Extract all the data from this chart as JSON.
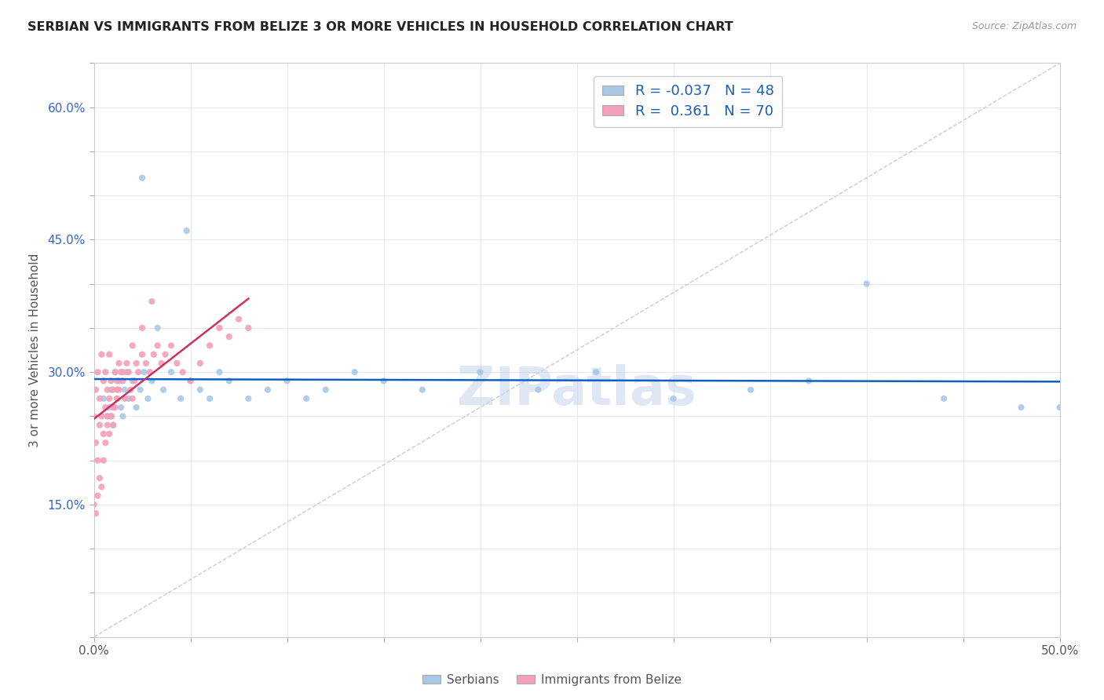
{
  "title": "SERBIAN VS IMMIGRANTS FROM BELIZE 3 OR MORE VEHICLES IN HOUSEHOLD CORRELATION CHART",
  "source": "Source: ZipAtlas.com",
  "ylabel": "3 or more Vehicles in Household",
  "xlim": [
    0.0,
    0.5
  ],
  "ylim": [
    0.0,
    0.65
  ],
  "xtick_pos": [
    0.0,
    0.05,
    0.1,
    0.15,
    0.2,
    0.25,
    0.3,
    0.35,
    0.4,
    0.45,
    0.5
  ],
  "xtick_labels": [
    "0.0%",
    "",
    "",
    "",
    "",
    "",
    "",
    "",
    "",
    "",
    "50.0%"
  ],
  "ytick_pos": [
    0.0,
    0.05,
    0.1,
    0.15,
    0.2,
    0.25,
    0.3,
    0.35,
    0.4,
    0.45,
    0.5,
    0.55,
    0.6,
    0.65
  ],
  "ytick_labels": [
    "",
    "",
    "",
    "15.0%",
    "",
    "",
    "30.0%",
    "",
    "",
    "45.0%",
    "",
    "",
    "60.0%",
    ""
  ],
  "serbian_R": -0.037,
  "serbian_N": 48,
  "belize_R": 0.361,
  "belize_N": 70,
  "serbian_color": "#a8c8e8",
  "belize_color": "#f4a0b8",
  "serbian_line_color": "#1060c0",
  "belize_line_color": "#d03060",
  "legend_serbian_label": "Serbians",
  "legend_belize_label": "Immigrants from Belize",
  "watermark": "ZIPatlas",
  "diag_line_color": "#cccccc",
  "serbian_x": [
    0.005,
    0.007,
    0.008,
    0.009,
    0.01,
    0.011,
    0.012,
    0.013,
    0.014,
    0.015,
    0.016,
    0.017,
    0.018,
    0.02,
    0.022,
    0.024,
    0.026,
    0.028,
    0.03,
    0.033,
    0.036,
    0.04,
    0.045,
    0.05,
    0.055,
    0.06,
    0.065,
    0.07,
    0.08,
    0.09,
    0.1,
    0.11,
    0.12,
    0.135,
    0.15,
    0.17,
    0.2,
    0.23,
    0.26,
    0.3,
    0.34,
    0.37,
    0.4,
    0.44,
    0.48,
    0.5,
    0.025,
    0.048
  ],
  "serbian_y": [
    0.27,
    0.25,
    0.26,
    0.28,
    0.24,
    0.3,
    0.27,
    0.29,
    0.26,
    0.25,
    0.28,
    0.3,
    0.27,
    0.29,
    0.26,
    0.28,
    0.3,
    0.27,
    0.29,
    0.35,
    0.28,
    0.3,
    0.27,
    0.29,
    0.28,
    0.27,
    0.3,
    0.29,
    0.27,
    0.28,
    0.29,
    0.27,
    0.28,
    0.3,
    0.29,
    0.28,
    0.3,
    0.28,
    0.3,
    0.27,
    0.28,
    0.29,
    0.4,
    0.27,
    0.26,
    0.26,
    0.52,
    0.46
  ],
  "belize_x": [
    0.0,
    0.001,
    0.001,
    0.002,
    0.002,
    0.003,
    0.003,
    0.004,
    0.004,
    0.005,
    0.005,
    0.006,
    0.006,
    0.007,
    0.007,
    0.008,
    0.008,
    0.009,
    0.009,
    0.01,
    0.01,
    0.011,
    0.011,
    0.012,
    0.012,
    0.013,
    0.013,
    0.014,
    0.015,
    0.016,
    0.017,
    0.018,
    0.019,
    0.02,
    0.021,
    0.022,
    0.023,
    0.025,
    0.027,
    0.029,
    0.031,
    0.033,
    0.035,
    0.037,
    0.04,
    0.043,
    0.046,
    0.05,
    0.055,
    0.06,
    0.065,
    0.07,
    0.075,
    0.08,
    0.0,
    0.001,
    0.002,
    0.003,
    0.004,
    0.005,
    0.006,
    0.007,
    0.008,
    0.009,
    0.01,
    0.012,
    0.015,
    0.02,
    0.025,
    0.03
  ],
  "belize_y": [
    0.25,
    0.28,
    0.22,
    0.3,
    0.2,
    0.27,
    0.24,
    0.32,
    0.25,
    0.29,
    0.23,
    0.3,
    0.26,
    0.28,
    0.25,
    0.27,
    0.32,
    0.25,
    0.29,
    0.28,
    0.24,
    0.3,
    0.26,
    0.29,
    0.27,
    0.31,
    0.28,
    0.3,
    0.29,
    0.27,
    0.31,
    0.3,
    0.28,
    0.27,
    0.29,
    0.31,
    0.3,
    0.32,
    0.31,
    0.3,
    0.32,
    0.33,
    0.31,
    0.32,
    0.33,
    0.31,
    0.3,
    0.29,
    0.31,
    0.33,
    0.35,
    0.34,
    0.36,
    0.35,
    0.15,
    0.14,
    0.16,
    0.18,
    0.17,
    0.2,
    0.22,
    0.24,
    0.23,
    0.25,
    0.26,
    0.28,
    0.3,
    0.33,
    0.35,
    0.38
  ]
}
